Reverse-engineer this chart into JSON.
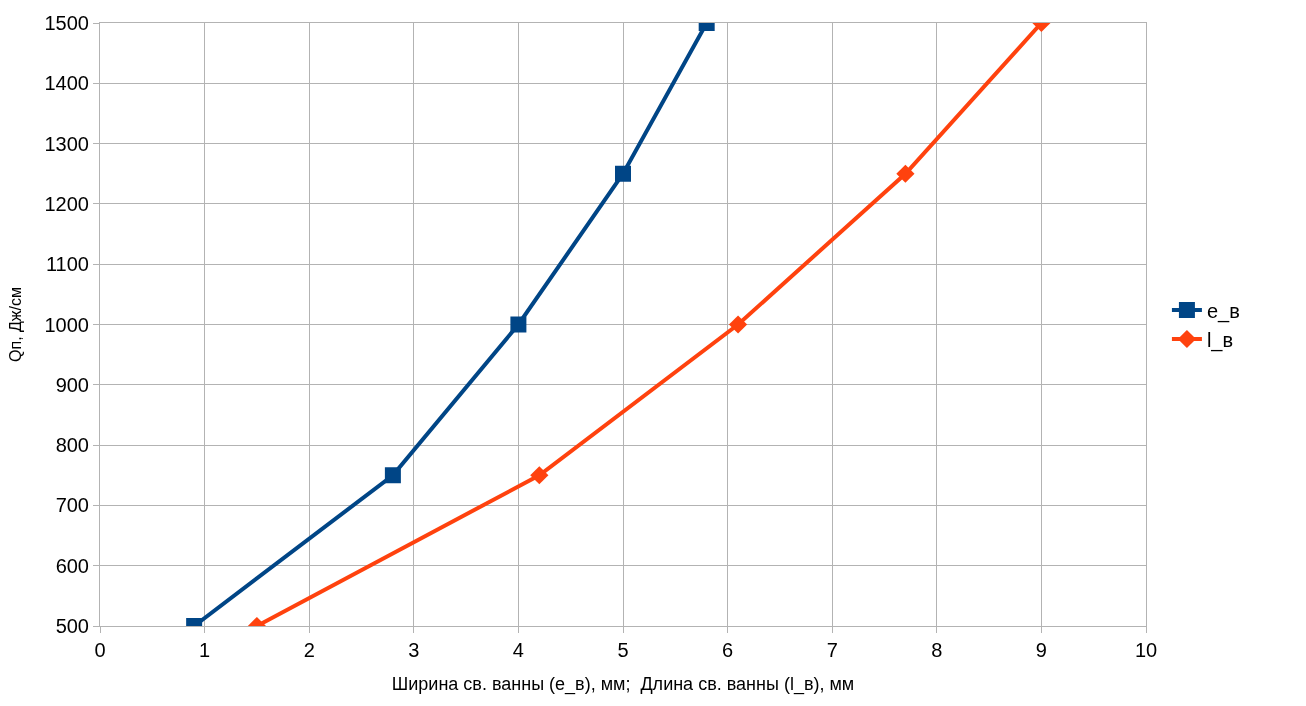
{
  "chart_data": {
    "type": "line",
    "xlabel": "Ширина св. ванны (e_в), мм;  Длина св. ванны (l_в), мм",
    "ylabel": "Qп, Дж/см",
    "series": [
      {
        "name": "e_в",
        "color": "#004586",
        "marker": "square",
        "x": [
          0.9,
          2.8,
          4,
          5,
          5.8
        ],
        "values": [
          500,
          750,
          1000,
          1250,
          1500
        ]
      },
      {
        "name": "l_в",
        "color": "#ff420e",
        "marker": "diamond",
        "x": [
          1.5,
          4.2,
          6.1,
          7.7,
          9
        ],
        "values": [
          500,
          750,
          1000,
          1250,
          1500
        ]
      }
    ],
    "xlim": [
      0,
      10
    ],
    "xticks": [
      0,
      1,
      2,
      3,
      4,
      5,
      6,
      7,
      8,
      9,
      10
    ],
    "ylim": [
      500,
      1500
    ],
    "yticks": [
      500,
      600,
      700,
      800,
      900,
      1000,
      1100,
      1200,
      1300,
      1400,
      1500
    ],
    "grid": true,
    "legend": "right",
    "line_style": "solid"
  }
}
